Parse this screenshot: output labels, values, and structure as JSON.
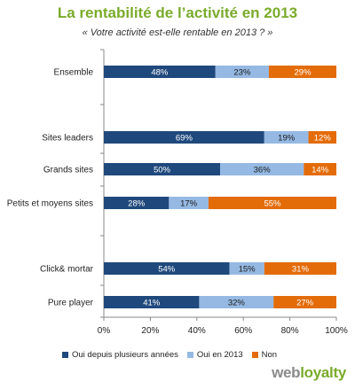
{
  "chart_data": {
    "type": "bar",
    "orientation": "horizontal",
    "stacked": true,
    "title": "La rentabilité de l’activité en 2013",
    "subtitle": "« Votre activité est-elle rentable en 2013 ? »",
    "categories": [
      "Ensemble",
      "Sites leaders",
      "Grands sites",
      "Petits et moyens sites",
      "Click& mortar",
      "Pure player"
    ],
    "series": [
      {
        "name": "Oui depuis plusieurs années",
        "color": "#1f497d",
        "values": [
          48,
          69,
          50,
          28,
          54,
          41
        ]
      },
      {
        "name": "Oui en 2013",
        "color": "#95b9e3",
        "values": [
          23,
          19,
          36,
          17,
          15,
          32
        ]
      },
      {
        "name": "Non",
        "color": "#e36c09",
        "values": [
          29,
          12,
          14,
          55,
          31,
          27
        ]
      }
    ],
    "data_labels": [
      [
        "48%",
        "23%",
        "29%"
      ],
      [
        "69%",
        "19%",
        "12%"
      ],
      [
        "50%",
        "36%",
        "14%"
      ],
      [
        "28%",
        "17%",
        "55%"
      ],
      [
        "54%",
        "15%",
        "31%"
      ],
      [
        "41%",
        "32%",
        "27%"
      ]
    ],
    "xlim": [
      0,
      100
    ],
    "xticks": [
      0,
      20,
      40,
      60,
      80,
      100
    ],
    "xtick_labels": [
      "0%",
      "20%",
      "40%",
      "60%",
      "80%",
      "100%"
    ],
    "grid": false,
    "legend_position": "bottom"
  },
  "brand": {
    "part1": "web",
    "part2": "loyalty"
  }
}
